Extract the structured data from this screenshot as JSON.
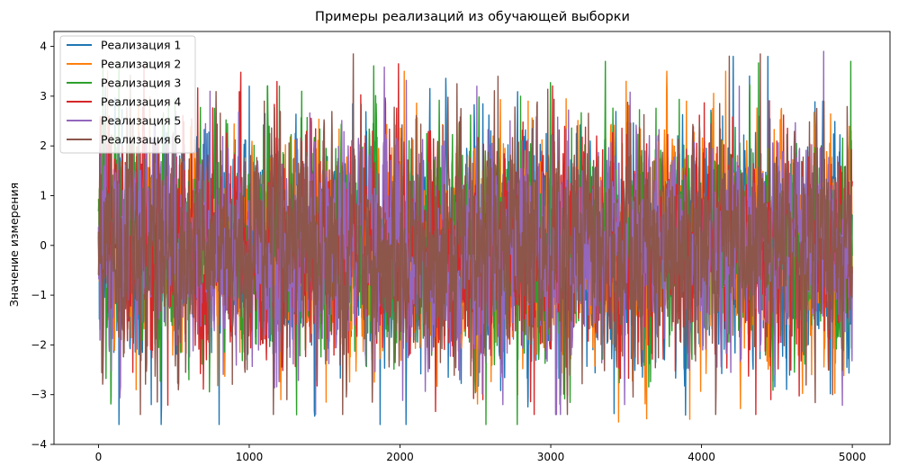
{
  "chart_data": {
    "type": "line",
    "title": "Примеры реализаций из обучающей выборки",
    "xlabel": "",
    "ylabel": "Значение измерения",
    "xlim": [
      -295,
      5250
    ],
    "ylim": [
      -4,
      4.3
    ],
    "x_ticks": [
      0,
      1000,
      2000,
      3000,
      4000,
      5000
    ],
    "y_ticks": [
      -4,
      -3,
      -2,
      -1,
      0,
      1,
      2,
      3,
      4
    ],
    "grid": false,
    "legend_position": "top-left",
    "x_range": [
      0,
      5000
    ],
    "series": [
      {
        "name": "Реализация 1",
        "color": "#1f77b4",
        "min": -3.6,
        "max": 3.8,
        "peaks": [
          [
            45,
            3.2
          ],
          [
            350,
            -3.2
          ],
          [
            800,
            -3.6
          ],
          [
            1000,
            3.2
          ],
          [
            4140,
            2.6
          ],
          [
            4440,
            3.8
          ]
        ]
      },
      {
        "name": "Реализация 2",
        "color": "#ff7f0e",
        "min": -3.55,
        "max": 3.5,
        "peaks": [
          [
            60,
            3.5
          ],
          [
            250,
            -2.9
          ],
          [
            1380,
            2.3
          ],
          [
            2780,
            -3.0
          ],
          [
            2850,
            2.9
          ],
          [
            3450,
            -3.55
          ],
          [
            3500,
            3.3
          ],
          [
            3900,
            2.9
          ]
        ]
      },
      {
        "name": "Реализация 3",
        "color": "#2ca02c",
        "min": -3.6,
        "max": 3.7,
        "peaks": [
          [
            30,
            3.7
          ],
          [
            600,
            -2.7
          ],
          [
            1120,
            3.2
          ],
          [
            1200,
            3.2
          ],
          [
            2570,
            -3.6
          ],
          [
            2800,
            3.0
          ],
          [
            4990,
            3.7
          ]
        ]
      },
      {
        "name": "Реализация 4",
        "color": "#d62728",
        "min": -3.4,
        "max": 3.65,
        "peaks": [
          [
            70,
            2.6
          ],
          [
            1990,
            3.65
          ],
          [
            2550,
            -3.1
          ],
          [
            4360,
            -3.4
          ],
          [
            4460,
            -3.1
          ]
        ]
      },
      {
        "name": "Реализация 5",
        "color": "#9467bd",
        "min": -3.4,
        "max": 3.9,
        "peaks": [
          [
            740,
            3.1
          ],
          [
            1440,
            -3.4
          ],
          [
            2510,
            3.2
          ],
          [
            3490,
            -3.2
          ],
          [
            4250,
            3.2
          ],
          [
            4810,
            3.9
          ]
        ]
      },
      {
        "name": "Реализация 6",
        "color": "#8c564b",
        "min": -3.4,
        "max": 3.85,
        "peaks": [
          [
            1100,
            2.9
          ],
          [
            1250,
            -3.1
          ],
          [
            1620,
            -3.4
          ],
          [
            2650,
            3.4
          ],
          [
            4390,
            3.85
          ],
          [
            4870,
            -3.0
          ]
        ]
      }
    ]
  }
}
